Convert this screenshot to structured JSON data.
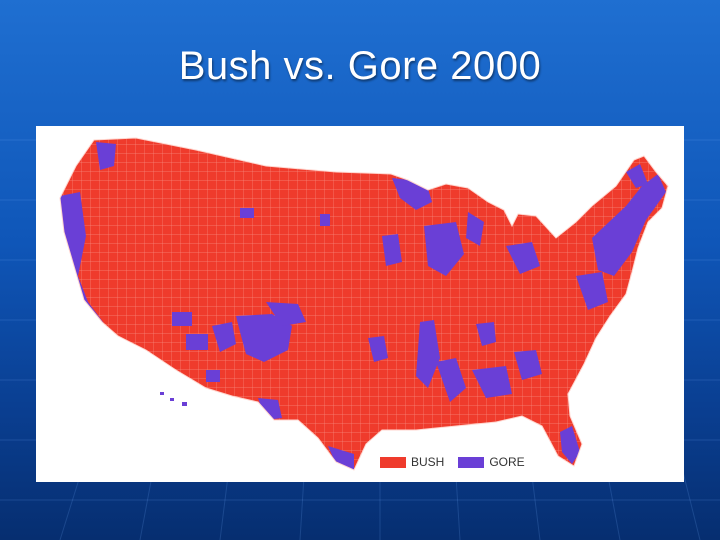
{
  "slide": {
    "title": "Bush vs. Gore 2000"
  },
  "map": {
    "subject": "2000 US presidential election results by county",
    "legend": [
      {
        "label": "BUSH",
        "color": "#ef3b2c"
      },
      {
        "label": "GORE",
        "color": "#6a3fd6"
      }
    ]
  },
  "colors": {
    "background": "#1560c4",
    "bush": "#ef3b2c",
    "gore": "#6a3fd6",
    "title": "#ffffff"
  }
}
